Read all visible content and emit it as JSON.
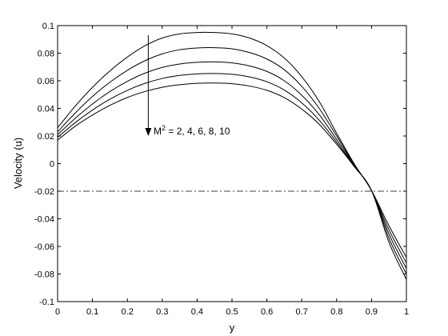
{
  "chart_data": {
    "type": "line",
    "xlabel": "y",
    "ylabel": "Velocity (u)",
    "xlim": [
      0,
      1
    ],
    "ylim": [
      -0.1,
      0.1
    ],
    "grid": false,
    "x_ticks": [
      "0",
      "0.1",
      "0.2",
      "0.3",
      "0.4",
      "0.5",
      "0.6",
      "0.7",
      "0.8",
      "0.9",
      "1"
    ],
    "y_ticks": [
      "-0.1",
      "-0.08",
      "-0.06",
      "-0.04",
      "-0.02",
      "0",
      "0.02",
      "0.04",
      "0.06",
      "0.08",
      "0.1"
    ],
    "annotation": {
      "prefix": "M",
      "superscript": "2",
      "suffix": " = 2, 4, 6, 8, 10"
    },
    "arrow": {
      "x": 0.26,
      "y_start": 0.093,
      "y_end": 0.02
    },
    "reference_line": {
      "y": -0.02,
      "style": "dash-dot"
    },
    "line_color": "#000000",
    "series": [
      {
        "x": [
          0,
          0.05,
          0.1,
          0.15,
          0.2,
          0.25,
          0.3,
          0.35,
          0.4,
          0.45,
          0.5,
          0.55,
          0.6,
          0.65,
          0.7,
          0.75,
          0.8,
          0.85,
          0.9,
          0.95,
          1.0
        ],
        "values": [
          0.026,
          0.0415,
          0.0553,
          0.0672,
          0.0772,
          0.0853,
          0.091,
          0.094,
          0.095,
          0.095,
          0.094,
          0.091,
          0.0855,
          0.0765,
          0.063,
          0.045,
          0.022,
          0.0,
          -0.0195,
          -0.045,
          -0.068
        ]
      },
      {
        "x": [
          0,
          0.05,
          0.1,
          0.15,
          0.2,
          0.25,
          0.3,
          0.35,
          0.4,
          0.45,
          0.5,
          0.55,
          0.6,
          0.65,
          0.7,
          0.75,
          0.8,
          0.85,
          0.9,
          0.95,
          1.0
        ],
        "values": [
          0.023,
          0.0365,
          0.0487,
          0.059,
          0.0676,
          0.0745,
          0.0795,
          0.0825,
          0.0838,
          0.084,
          0.0832,
          0.0805,
          0.0758,
          0.068,
          0.056,
          0.04,
          0.02,
          -0.0005,
          -0.0195,
          -0.048,
          -0.072
        ]
      },
      {
        "x": [
          0,
          0.05,
          0.1,
          0.15,
          0.2,
          0.25,
          0.3,
          0.35,
          0.4,
          0.45,
          0.5,
          0.55,
          0.6,
          0.65,
          0.7,
          0.75,
          0.8,
          0.85,
          0.9,
          0.95,
          1.0
        ],
        "values": [
          0.021,
          0.0327,
          0.0432,
          0.0522,
          0.0596,
          0.0655,
          0.0697,
          0.0722,
          0.0734,
          0.0737,
          0.073,
          0.0708,
          0.0668,
          0.06,
          0.0495,
          0.0355,
          0.0175,
          -0.001,
          -0.0195,
          -0.051,
          -0.076
        ]
      },
      {
        "x": [
          0,
          0.05,
          0.1,
          0.15,
          0.2,
          0.25,
          0.3,
          0.35,
          0.4,
          0.45,
          0.5,
          0.55,
          0.6,
          0.65,
          0.7,
          0.75,
          0.8,
          0.85,
          0.9,
          0.95,
          1.0
        ],
        "values": [
          0.019,
          0.0296,
          0.0388,
          0.0467,
          0.0531,
          0.0581,
          0.0617,
          0.0639,
          0.065,
          0.0653,
          0.0647,
          0.0628,
          0.0593,
          0.0533,
          0.044,
          0.0315,
          0.0155,
          -0.0015,
          -0.0195,
          -0.054,
          -0.08
        ]
      },
      {
        "x": [
          0,
          0.05,
          0.1,
          0.15,
          0.2,
          0.25,
          0.3,
          0.35,
          0.4,
          0.45,
          0.5,
          0.55,
          0.6,
          0.65,
          0.7,
          0.75,
          0.8,
          0.85,
          0.9,
          0.95,
          1.0
        ],
        "values": [
          0.017,
          0.027,
          0.0352,
          0.0422,
          0.0479,
          0.0522,
          0.0553,
          0.0572,
          0.0582,
          0.0584,
          0.0579,
          0.0562,
          0.0531,
          0.0478,
          0.0395,
          0.0285,
          0.014,
          -0.002,
          -0.0195,
          -0.057,
          -0.084
        ]
      }
    ]
  }
}
